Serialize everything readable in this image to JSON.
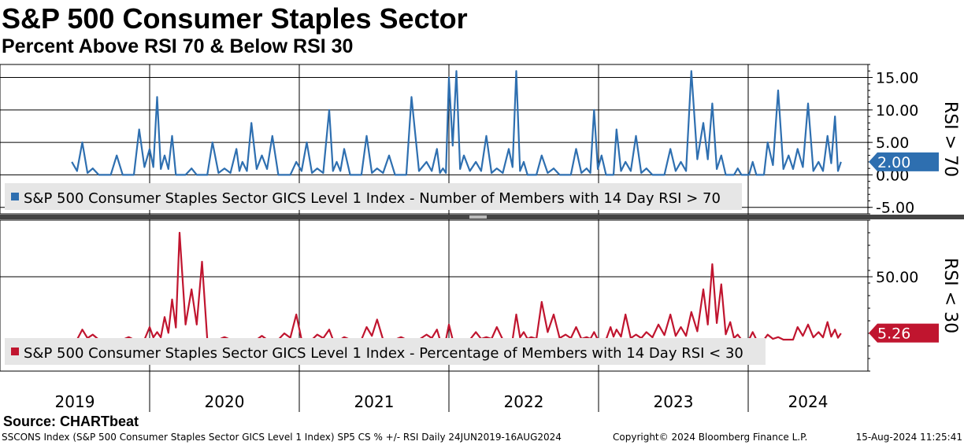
{
  "header": {
    "title": "S&P 500 Consumer Staples Sector",
    "subtitle": "Percent Above RSI 70 & Below RSI 30"
  },
  "chart_data": [
    {
      "type": "line",
      "panel": "top",
      "ylabel": "RSI > 70",
      "yticks": [
        "15.00",
        "10.00",
        "5.00",
        "0.00",
        "-5.00"
      ],
      "ylim": [
        -6,
        17
      ],
      "grid": true,
      "legend": "S&P 500 Consumer Staples Sector GICS Level 1 Index - Number of Members with 14 Day RSI > 70",
      "last_value": "2.00",
      "color": "#2e6fb0",
      "series": [
        {
          "x": [
            2019.48,
            2019.55,
            2019.62,
            2019.7,
            2019.78,
            2019.86,
            2019.93,
            2020.0,
            2020.05,
            2020.1,
            2020.15,
            2020.2,
            2020.28,
            2020.35,
            2020.42,
            2020.5,
            2020.58,
            2020.62,
            2020.68,
            2020.75,
            2020.82,
            2020.9,
            2020.98,
            2021.05,
            2021.12,
            2021.2,
            2021.25,
            2021.3,
            2021.38,
            2021.45,
            2021.52,
            2021.6,
            2021.68,
            2021.75,
            2021.85,
            2021.92,
            2021.96,
            2022.0,
            2022.05,
            2022.1,
            2022.18,
            2022.25,
            2022.32,
            2022.4,
            2022.45,
            2022.5,
            2022.55,
            2022.62,
            2022.7,
            2022.78,
            2022.85,
            2022.92,
            2022.97,
            2023.02,
            2023.08,
            2023.12,
            2023.18,
            2023.25,
            2023.32,
            2023.4,
            2023.48,
            2023.55,
            2023.62,
            2023.7,
            2023.76,
            2023.82,
            2023.88,
            2023.93,
            2023.98,
            2024.03,
            2024.08,
            2024.13,
            2024.2,
            2024.27,
            2024.33,
            2024.4,
            2024.47,
            2024.53,
            2024.58,
            2024.62
          ],
          "y": [
            2,
            5,
            1,
            0,
            3,
            0,
            7,
            4,
            12,
            3,
            6,
            0,
            1,
            0,
            5,
            1,
            4,
            2,
            8,
            3,
            6,
            0,
            2,
            5,
            1,
            10,
            2,
            4,
            0,
            6,
            1,
            3,
            0,
            12,
            2,
            4,
            1,
            15,
            16,
            3,
            2,
            6,
            1,
            4,
            16,
            2,
            0,
            3,
            1,
            0,
            4,
            1,
            10,
            3,
            0,
            7,
            2,
            6,
            1,
            0,
            4,
            2,
            16,
            8,
            11,
            3,
            0,
            1,
            0,
            2,
            0,
            5,
            13,
            3,
            4,
            11,
            2,
            6,
            9,
            2
          ]
        }
      ]
    },
    {
      "type": "line",
      "panel": "bottom",
      "ylabel": "RSI < 30",
      "yticks": [
        "50.00"
      ],
      "ylim": [
        -25,
        95
      ],
      "grid": true,
      "legend": "S&P 500 Consumer Staples Sector GICS Level 1 Index - Percentage of Members with 14 Day RSI < 30",
      "last_value": "5.26",
      "color": "#c0152f",
      "series": [
        {
          "x": [
            2019.48,
            2019.55,
            2019.62,
            2019.7,
            2019.78,
            2019.86,
            2019.93,
            2020.0,
            2020.05,
            2020.1,
            2020.15,
            2020.2,
            2020.28,
            2020.35,
            2020.42,
            2020.5,
            2020.58,
            2020.62,
            2020.68,
            2020.75,
            2020.82,
            2020.9,
            2020.98,
            2021.05,
            2021.12,
            2021.2,
            2021.25,
            2021.3,
            2021.38,
            2021.45,
            2021.52,
            2021.6,
            2021.68,
            2021.75,
            2021.85,
            2021.92,
            2021.96,
            2022.0,
            2022.05,
            2022.1,
            2022.18,
            2022.25,
            2022.32,
            2022.4,
            2022.45,
            2022.5,
            2022.55,
            2022.62,
            2022.7,
            2022.78,
            2022.85,
            2022.92,
            2022.97,
            2023.02,
            2023.08,
            2023.12,
            2023.18,
            2023.25,
            2023.32,
            2023.4,
            2023.48,
            2023.55,
            2023.62,
            2023.7,
            2023.76,
            2023.82,
            2023.88,
            2023.93,
            2023.98,
            2024.03,
            2024.08,
            2024.13,
            2024.2,
            2024.27,
            2024.33,
            2024.4,
            2024.47,
            2024.53,
            2024.58,
            2024.62
          ],
          "y": [
            0,
            8,
            4,
            0,
            0,
            2,
            0,
            10,
            6,
            18,
            32,
            85,
            40,
            62,
            0,
            2,
            0,
            0,
            0,
            3,
            0,
            5,
            20,
            0,
            4,
            8,
            0,
            2,
            0,
            10,
            16,
            0,
            2,
            0,
            4,
            8,
            0,
            12,
            0,
            0,
            6,
            2,
            10,
            0,
            20,
            6,
            2,
            30,
            20,
            4,
            10,
            2,
            6,
            0,
            10,
            8,
            20,
            4,
            6,
            12,
            20,
            10,
            22,
            40,
            60,
            44,
            14,
            4,
            0,
            6,
            0,
            4,
            2,
            0,
            10,
            12,
            6,
            14,
            8,
            5
          ]
        }
      ]
    }
  ],
  "x_axis": {
    "years": [
      "2019",
      "2020",
      "2021",
      "2022",
      "2023",
      "2024"
    ]
  },
  "footer": {
    "source": "Source: CHARTbeat",
    "left": "SSCONS Index (S&P 500 Consumer Staples Sector GICS Level 1 Index) SP5 CS % +/- RSI  Daily 24JUN2019-16AUG2024",
    "middle": "Copyright© 2024 Bloomberg Finance L.P.",
    "right": "15-Aug-2024 11:25:41"
  }
}
